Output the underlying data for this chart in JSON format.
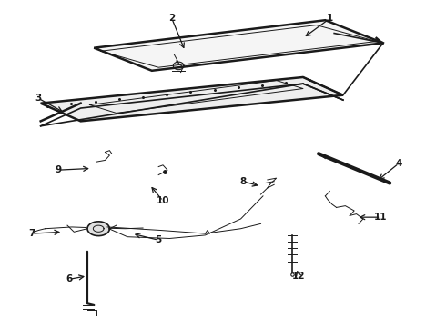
{
  "background_color": "#ffffff",
  "line_color": "#1a1a1a",
  "lw_thick": 1.8,
  "lw_med": 1.2,
  "lw_thin": 0.7,
  "callouts": {
    "1": {
      "lpos": [
        0.74,
        0.055
      ],
      "tpos": [
        0.68,
        0.115
      ]
    },
    "2": {
      "lpos": [
        0.385,
        0.055
      ],
      "tpos": [
        0.415,
        0.155
      ]
    },
    "3": {
      "lpos": [
        0.085,
        0.3
      ],
      "tpos": [
        0.145,
        0.345
      ]
    },
    "4": {
      "lpos": [
        0.895,
        0.5
      ],
      "tpos": [
        0.845,
        0.555
      ]
    },
    "5": {
      "lpos": [
        0.355,
        0.735
      ],
      "tpos": [
        0.295,
        0.715
      ]
    },
    "6": {
      "lpos": [
        0.155,
        0.855
      ],
      "tpos": [
        0.195,
        0.845
      ]
    },
    "7": {
      "lpos": [
        0.07,
        0.715
      ],
      "tpos": [
        0.14,
        0.71
      ]
    },
    "8": {
      "lpos": [
        0.545,
        0.555
      ],
      "tpos": [
        0.585,
        0.57
      ]
    },
    "9": {
      "lpos": [
        0.13,
        0.52
      ],
      "tpos": [
        0.205,
        0.515
      ]
    },
    "10": {
      "lpos": [
        0.365,
        0.615
      ],
      "tpos": [
        0.335,
        0.565
      ]
    },
    "11": {
      "lpos": [
        0.855,
        0.665
      ],
      "tpos": [
        0.8,
        0.665
      ]
    },
    "12": {
      "lpos": [
        0.67,
        0.845
      ],
      "tpos": [
        0.665,
        0.82
      ]
    }
  }
}
